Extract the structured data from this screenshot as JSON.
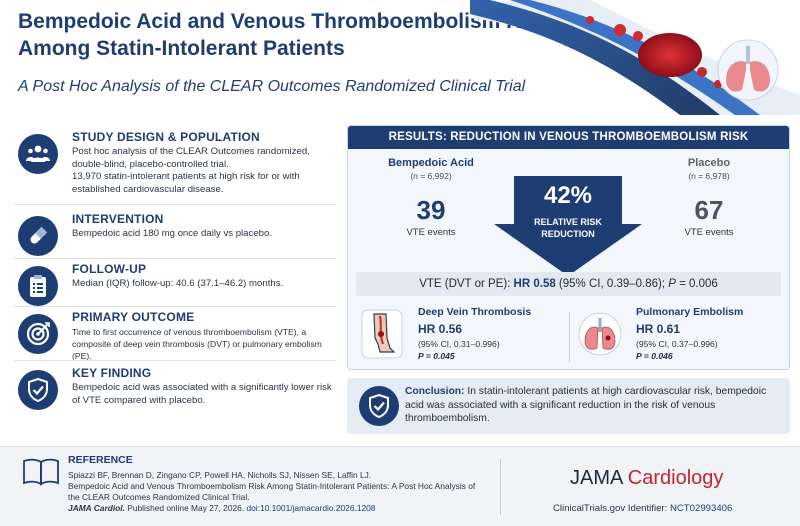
{
  "header": {
    "title": "Bempedoic Acid and Venous Thromboembolism Risk Among Statin-Intolerant Patients",
    "subtitle": "A Post Hoc Analysis of the CLEAR Outcomes Randomized Clinical Trial"
  },
  "sections": [
    {
      "heading": "STUDY DESIGN & POPULATION",
      "icon": "people-group-icon",
      "lines": [
        "Post hoc analysis of the CLEAR Outcomes randomized, double-blind, placebo-controlled trial.",
        "13,970 statin-intolerant patients at high risk for or with established cardiovascular disease."
      ]
    },
    {
      "heading": "INTERVENTION",
      "icon": "pill-capsule-icon",
      "lines": [
        "Bempedoic acid 180 mg once daily vs placebo."
      ]
    },
    {
      "heading": "FOLLOW-UP",
      "icon": "clipboard-checklist-icon",
      "lines": [
        "Median (IQR) follow-up: 40.6 (37.1–46.2) months."
      ]
    },
    {
      "heading": "PRIMARY OUTCOME",
      "icon": "target-icon",
      "lines": [
        "Time to first occurrence of venous thromboembolism (VTE), a composite of deep vein thrombosis (DVT) or pulmonary embolism (PE)."
      ]
    },
    {
      "heading": "KEY FINDING",
      "icon": "shield-check-icon",
      "lines": [
        "Bempedoic acid was associated with a significantly lower risk of VTE compared with placebo."
      ]
    }
  ],
  "results": {
    "header": "RESULTS: REDUCTION IN VENOUS THROMBOEMBOLISM RISK",
    "bempedoic": {
      "name": "Bempedoic Acid",
      "n": "(n = 6,992)",
      "events": "39",
      "events_label": "VTE events"
    },
    "placebo": {
      "name": "Placebo",
      "n": "(n = 6,978)",
      "events": "67",
      "events_label": "VTE events"
    },
    "rrr": {
      "value": "42%",
      "line1": "RELATIVE RISK",
      "line2": "REDUCTION"
    },
    "vte": {
      "prefix": "VTE (DVT or PE): ",
      "hr": "HR 0.58",
      "ci": " (95% CI, 0.39–0.86); ",
      "p_label": "P",
      "p_value": " = 0.006"
    },
    "dvt": {
      "title": "Deep Vein Thrombosis",
      "hr": "HR 0.56",
      "ci": "(95% CI, 0.31–0.996)",
      "p": "P = 0.045"
    },
    "pe": {
      "title": "Pulmonary Embolism",
      "hr": "HR 0.61",
      "ci": "(95% CI, 0.37–0.996)",
      "p": "P = 0.046"
    }
  },
  "conclusion": {
    "label": "Conclusion:",
    "text": " In statin-intolerant patients at high cardiovascular risk, bempedoic acid was associated with a significant reduction in the risk of venous thromboembolism."
  },
  "reference": {
    "heading": "REFERENCE",
    "authors": "Spiazzi BF, Brennan D, Zingano CP, Powell HA, Nicholls SJ, Nissen SE, Laffin LJ.",
    "article": "Bempedoic Acid and Venous Thromboembolism Risk Among Statin-Intolerant Patients: A Post Hoc Analysis of the CLEAR Outcomes Randomized Clinical Trial.",
    "journal": "JAMA Cardiol.",
    "published": " Published online May 27, 2026. ",
    "doi": "doi:10.1001/jamacardio.2026.1208"
  },
  "brand": {
    "part1": "JAMA",
    "part2": " Cardiology"
  },
  "trial": {
    "label": "ClinicalTrials.gov Identifier: ",
    "id": "NCT02993406"
  },
  "colors": {
    "navy": "#1e3d73",
    "red": "#c4262e",
    "panel": "#f3f6fa"
  }
}
